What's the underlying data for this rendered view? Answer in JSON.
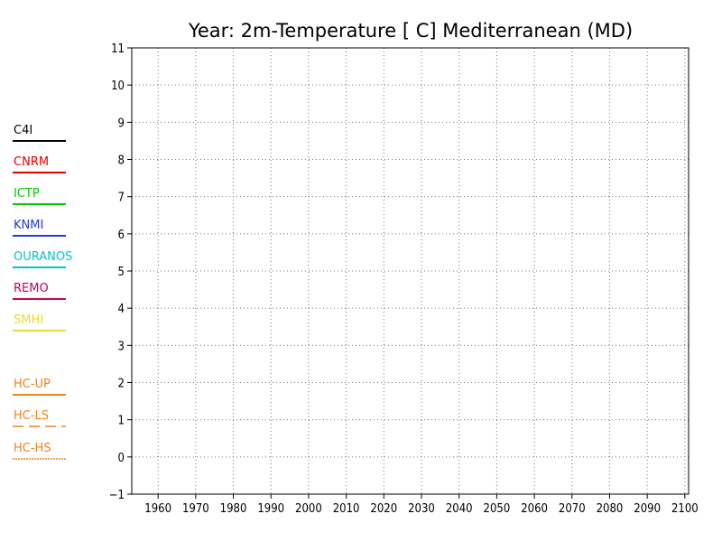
{
  "chart_data": {
    "type": "line",
    "title": "Year: 2m-Temperature [  C] Mediterranean (MD)",
    "xlabel": "",
    "ylabel": "",
    "x_ticks": [
      1960,
      1970,
      1980,
      1990,
      2000,
      2010,
      2020,
      2030,
      2040,
      2050,
      2060,
      2070,
      2080,
      2090,
      2100
    ],
    "y_ticks": [
      -1,
      0,
      1,
      2,
      3,
      4,
      5,
      6,
      7,
      8,
      9,
      10,
      11
    ],
    "xlim": [
      1953,
      2101
    ],
    "ylim": [
      -1,
      11
    ],
    "grid": true,
    "legend_position": "left",
    "series": [
      {
        "name": "C4I",
        "color": "#000000",
        "line_style": "solid",
        "values": []
      },
      {
        "name": "CNRM",
        "color": "#e60000",
        "line_style": "solid",
        "values": []
      },
      {
        "name": "ICTP",
        "color": "#00c800",
        "line_style": "solid",
        "values": []
      },
      {
        "name": "KNMI",
        "color": "#1e3cdc",
        "line_style": "solid",
        "values": []
      },
      {
        "name": "OURANOS",
        "color": "#00c8c8",
        "line_style": "solid",
        "values": []
      },
      {
        "name": "REMO",
        "color": "#c8005a",
        "line_style": "solid",
        "values": []
      },
      {
        "name": "SMHI",
        "color": "#e6dc32",
        "line_style": "solid",
        "values": []
      },
      {
        "name": "HC-UP",
        "color": "#f0821e",
        "line_style": "solid",
        "values": []
      },
      {
        "name": "HC-LS",
        "color": "#f0821e",
        "line_style": "dashed",
        "values": []
      },
      {
        "name": "HC-HS",
        "color": "#f0821e",
        "line_style": "dotted",
        "values": []
      }
    ]
  }
}
